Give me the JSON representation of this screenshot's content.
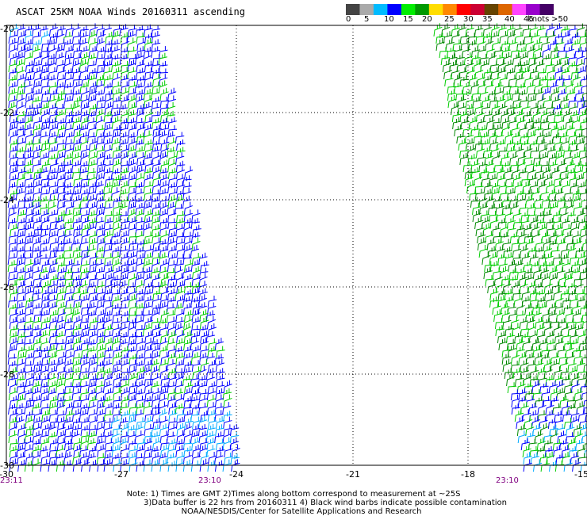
{
  "title": "ASCAT 25KM NOAA Winds 20160311 ascending",
  "colorbar": {
    "colors": [
      "#444444",
      "#aaaaaa",
      "#00bbff",
      "#0000ff",
      "#00ee00",
      "#009900",
      "#ffdd00",
      "#ff8800",
      "#ff0000",
      "#cc0033",
      "#664400",
      "#dd6600",
      "#ff44ff",
      "#9900cc",
      "#440066"
    ],
    "labels": [
      "0",
      "5",
      "10",
      "15",
      "20",
      "25",
      "30",
      "35",
      "40",
      "45",
      ">50"
    ],
    "units": "knots"
  },
  "map": {
    "lon_ticks": [
      "-30",
      "-27",
      "-24",
      "-21",
      "-18",
      "-15"
    ],
    "lat_ticks": [
      "-20",
      "-22",
      "-24",
      "-26",
      "-28",
      "-30"
    ],
    "pass_times": [
      "23:11",
      "23:10",
      "23:10"
    ],
    "barb_colors": {
      "blue": "#0000ff",
      "green": "#00cc00",
      "darkgreen": "#008800",
      "cyan": "#00aaff"
    }
  },
  "notes": {
    "line1": "Note: 1) Times are GMT 2)Times along bottom correspond to measurement at ~25S",
    "line2": "3)Data buffer is 22 hrs from 20160311 4) Black wind barbs indicate possible contamination",
    "line3": "NOAA/NESDIS/Center for Satellite Applications and Research"
  }
}
